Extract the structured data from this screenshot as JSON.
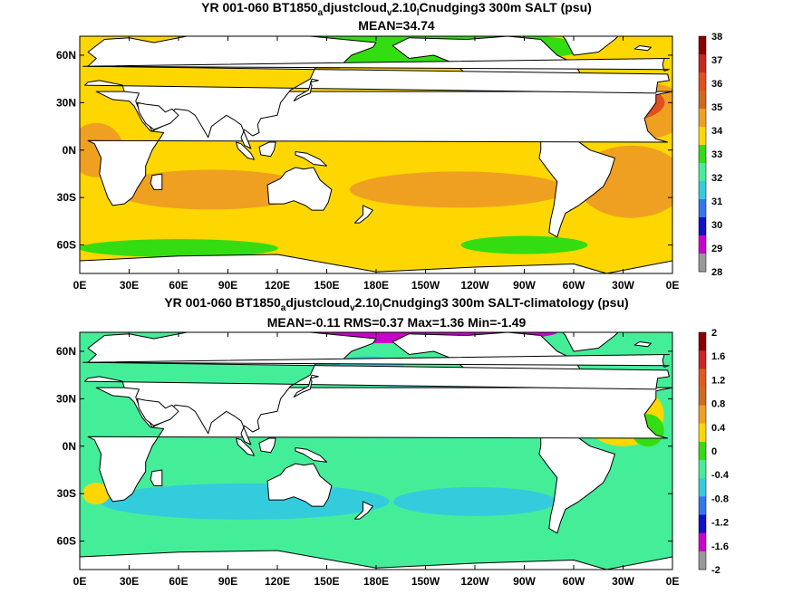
{
  "chart_data": [
    {
      "type": "heatmap",
      "title_parts": [
        "YR 001-060 BT1850",
        "a",
        "djustcloud",
        "v",
        "2.10",
        "l",
        "Cnudging3 300m SALT (psu)"
      ],
      "subtitle": "MEAN=34.74",
      "x_ticks": [
        "0E",
        "30E",
        "60E",
        "90E",
        "120E",
        "150E",
        "180E",
        "150W",
        "120W",
        "90W",
        "60W",
        "30W",
        "0E"
      ],
      "y_ticks": [
        "60N",
        "30N",
        "0N",
        "30S",
        "60S"
      ],
      "colorbar": {
        "labels": [
          "38",
          "37",
          "36",
          "35",
          "34",
          "33",
          "32",
          "31",
          "30",
          "29",
          "28"
        ],
        "colors": [
          "#8b0000",
          "#c8281e",
          "#e0501e",
          "#d2691e",
          "#f0a020",
          "#ffd700",
          "#33dd11",
          "#44ee99",
          "#33ccdd",
          "#3377ee",
          "#1111cc",
          "#cc00cc",
          "#999999"
        ]
      },
      "colors": {
        "land": "#ffffff",
        "ocean_base": "#ffd700",
        "warm": "#f0a020",
        "hot": "#e0501e",
        "fresh": "#33dd11"
      }
    },
    {
      "type": "heatmap",
      "title_parts": [
        "YR 001-060 BT1850",
        "a",
        "djustcloud",
        "v",
        "2.10",
        "l",
        "Cnudging3 300m SALT-climatology (psu)"
      ],
      "subtitle": "MEAN=-0.11   RMS=0.37   Max=1.36   Min=-1.49",
      "x_ticks": [
        "0E",
        "30E",
        "60E",
        "90E",
        "120E",
        "150E",
        "180E",
        "150W",
        "120W",
        "90W",
        "60W",
        "30W",
        "0E"
      ],
      "y_ticks": [
        "60N",
        "30N",
        "0N",
        "30S",
        "60S"
      ],
      "colorbar": {
        "labels": [
          "2",
          "1.6",
          "1.2",
          "0.8",
          "0.4",
          "0",
          "-0.4",
          "-0.8",
          "-1.2",
          "-1.6",
          "-2"
        ],
        "colors": [
          "#8b0000",
          "#d22222",
          "#e05a1e",
          "#d2691e",
          "#f0a020",
          "#ffd700",
          "#33dd11",
          "#44ee99",
          "#33ccdd",
          "#3377ee",
          "#1111cc",
          "#cc00cc",
          "#999999"
        ]
      },
      "colors": {
        "land": "#ffffff",
        "ocean_base": "#44ee99",
        "cool": "#33ccdd",
        "warm": "#ffd700",
        "arctic": "#cc00cc"
      }
    }
  ]
}
